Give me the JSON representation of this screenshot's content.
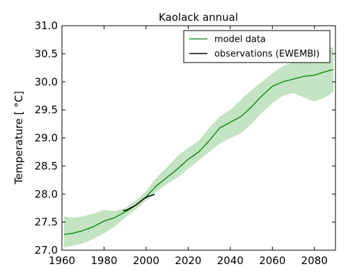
{
  "chart_data": {
    "type": "line",
    "title": "Kaolack annual",
    "xlabel": "",
    "ylabel": "Temperature [ °C]",
    "xlim": [
      1960,
      2090
    ],
    "ylim": [
      27.0,
      31.0
    ],
    "xticks": [
      "1960",
      "1980",
      "2000",
      "2020",
      "2040",
      "2060",
      "2080"
    ],
    "yticks": [
      "27.0",
      "27.5",
      "28.0",
      "28.5",
      "29.0",
      "29.5",
      "30.0",
      "30.5",
      "31.0"
    ],
    "grid": false,
    "legend_position": "top-right",
    "colors": {
      "model": "#008000",
      "band": "#b9dfb9",
      "observations": "#000000"
    },
    "series": [
      {
        "name": "model data",
        "kind": "line-with-band",
        "x": [
          1961,
          1965,
          1970,
          1975,
          1980,
          1985,
          1990,
          1995,
          2000,
          2005,
          2010,
          2015,
          2020,
          2025,
          2030,
          2035,
          2040,
          2045,
          2050,
          2055,
          2060,
          2065,
          2070,
          2075,
          2080,
          2085,
          2089
        ],
        "y": [
          27.28,
          27.3,
          27.35,
          27.42,
          27.52,
          27.58,
          27.68,
          27.8,
          27.95,
          28.15,
          28.3,
          28.45,
          28.62,
          28.75,
          28.95,
          29.18,
          29.28,
          29.38,
          29.55,
          29.75,
          29.92,
          30.0,
          30.05,
          30.1,
          30.12,
          30.18,
          30.22
        ],
        "lower": [
          27.05,
          27.08,
          27.12,
          27.2,
          27.3,
          27.42,
          27.58,
          27.72,
          27.88,
          28.05,
          28.18,
          28.3,
          28.45,
          28.6,
          28.75,
          28.9,
          29.0,
          29.08,
          29.25,
          29.45,
          29.62,
          29.75,
          29.8,
          29.72,
          29.65,
          29.72,
          29.82
        ],
        "upper": [
          27.6,
          27.58,
          27.6,
          27.65,
          27.72,
          27.7,
          27.75,
          27.88,
          28.05,
          28.3,
          28.48,
          28.68,
          28.82,
          28.95,
          29.18,
          29.38,
          29.5,
          29.68,
          29.85,
          30.0,
          30.15,
          30.28,
          30.35,
          30.42,
          30.5,
          30.58,
          30.62
        ]
      },
      {
        "name": "observations (EWEMBI)",
        "kind": "line",
        "x": [
          1989,
          1991,
          1993,
          1995,
          1997,
          1999,
          2001,
          2003,
          2004
        ],
        "y": [
          27.7,
          27.72,
          27.76,
          27.8,
          27.86,
          27.92,
          27.96,
          27.98,
          28.0
        ]
      }
    ]
  }
}
